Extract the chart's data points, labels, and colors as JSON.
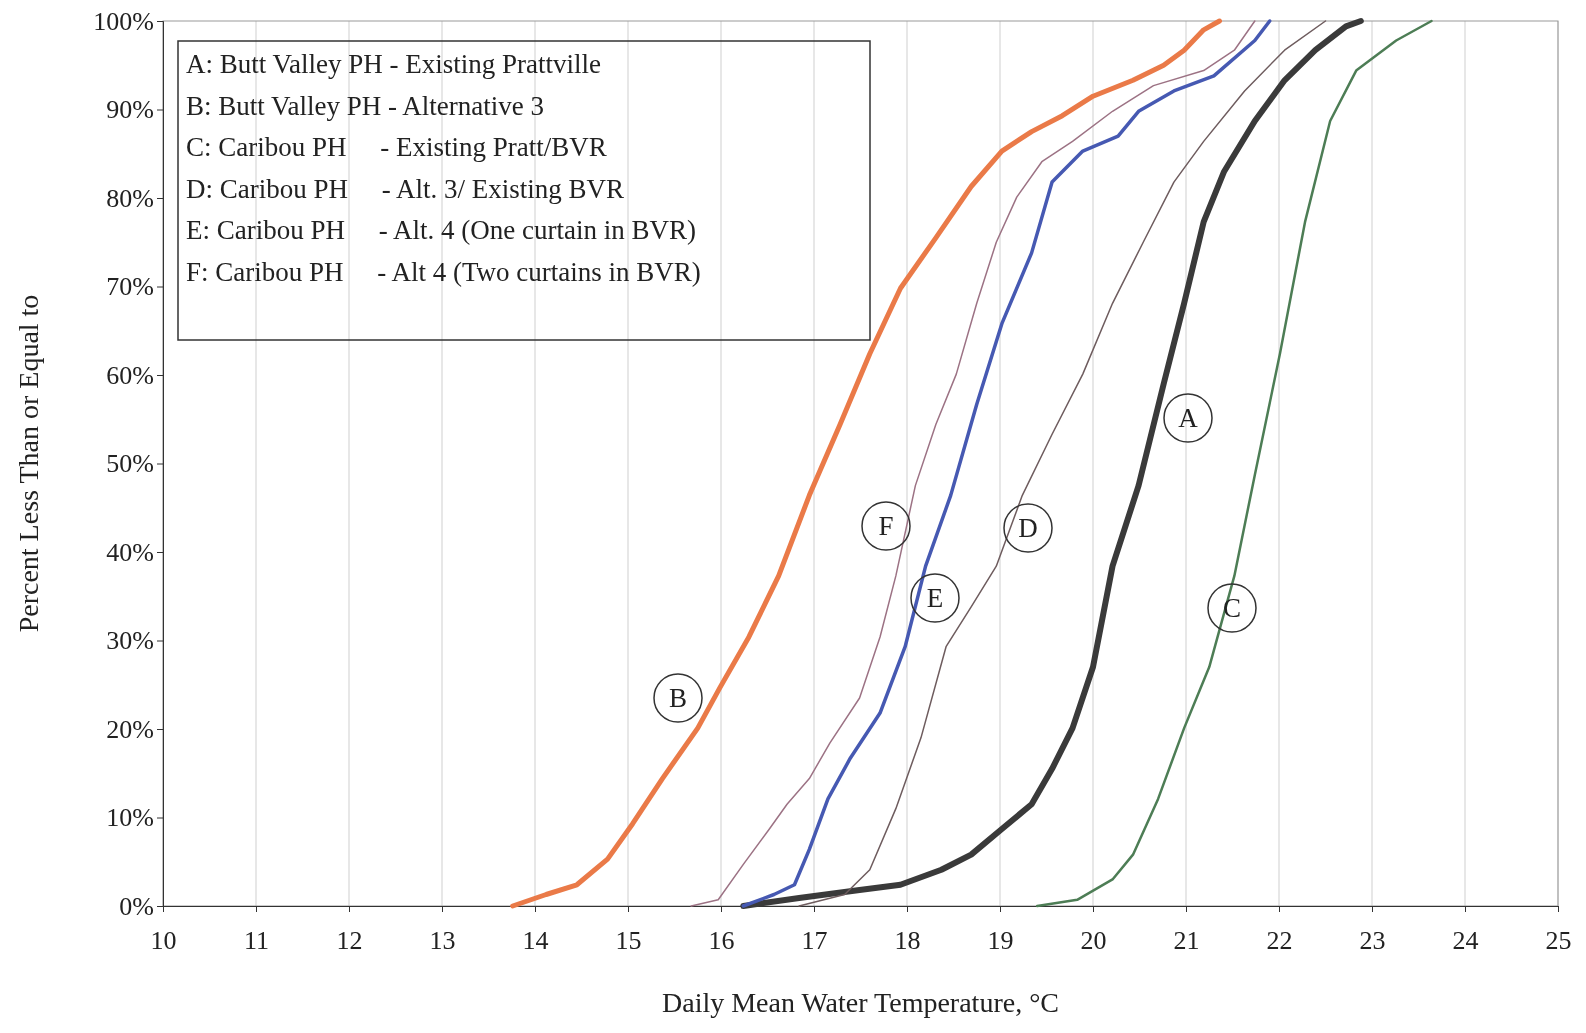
{
  "chart_data": {
    "type": "line",
    "xlabel": "Daily Mean Water Temperature, °C",
    "ylabel": "Percent Less Than or Equal to",
    "xlim": [
      10,
      25
    ],
    "xticks": [
      10,
      11,
      12,
      13,
      14,
      15,
      16,
      17,
      18,
      19,
      20,
      21,
      22,
      23,
      24,
      25
    ],
    "ylim": [
      0,
      100
    ],
    "yticks": [
      {
        "value": 0,
        "label": "0%"
      },
      {
        "value": 10,
        "label": "10%"
      },
      {
        "value": 20,
        "label": "20%"
      },
      {
        "value": 30,
        "label": "30%"
      },
      {
        "value": 40,
        "label": "40%"
      },
      {
        "value": 50,
        "label": "50%"
      },
      {
        "value": 60,
        "label": "60%"
      },
      {
        "value": 70,
        "label": "70%"
      },
      {
        "value": 80,
        "label": "80%"
      },
      {
        "value": 90,
        "label": "90%"
      },
      {
        "value": 100,
        "label": "100%"
      }
    ],
    "grid": "x",
    "marker": "none",
    "line_style": "solid",
    "series": [
      {
        "name": "A",
        "color": "#3a3a3a",
        "x": [
          16.24,
          16.84,
          17.49,
          17.93,
          18.37,
          18.69,
          19.02,
          19.34,
          19.56,
          19.78,
          20.0,
          20.21,
          20.49,
          20.76,
          20.98,
          21.19,
          21.41,
          21.74,
          22.06,
          22.39,
          22.72,
          22.88
        ],
        "values": [
          0,
          0.9,
          1.8,
          2.4,
          4.1,
          5.8,
          8.7,
          11.5,
          15.5,
          20.1,
          27,
          38.4,
          47.5,
          59,
          68.1,
          77.3,
          83,
          88.7,
          93.3,
          96.7,
          99.4,
          100
        ]
      },
      {
        "name": "B",
        "color": "#ea7a48",
        "x": [
          13.76,
          14.12,
          14.45,
          14.78,
          15.05,
          15.37,
          15.75,
          15.99,
          16.3,
          16.62,
          16.95,
          17.28,
          17.6,
          17.93,
          18.31,
          18.69,
          19.02,
          19.34,
          19.67,
          20.0,
          20.43,
          20.76,
          20.98,
          21.19,
          21.36
        ],
        "values": [
          0,
          1.3,
          2.4,
          5.3,
          9.3,
          14.4,
          20.1,
          24.7,
          30.4,
          37.3,
          46.4,
          54.4,
          62.4,
          69.8,
          75.5,
          81.3,
          85.3,
          87.5,
          89.3,
          91.5,
          93.3,
          95,
          96.7,
          99,
          100
        ]
      },
      {
        "name": "C",
        "color": "#4d7d55",
        "x": [
          19.4,
          19.83,
          20.21,
          20.43,
          20.7,
          20.98,
          21.25,
          21.52,
          21.74,
          22.01,
          22.28,
          22.55,
          22.83,
          23.26,
          23.64
        ],
        "values": [
          0,
          0.7,
          3,
          5.8,
          12.1,
          20.1,
          27,
          37.3,
          48.7,
          62.4,
          77.3,
          88.7,
          94.4,
          97.8,
          100
        ]
      },
      {
        "name": "D",
        "color": "#6e5c5e",
        "x": [
          16.84,
          17.33,
          17.6,
          17.88,
          18.15,
          18.42,
          18.69,
          18.96,
          19.24,
          19.56,
          19.89,
          20.21,
          20.54,
          20.87,
          21.19,
          21.63,
          22.06,
          22.5
        ],
        "values": [
          0,
          1.3,
          4.1,
          11,
          19,
          29.3,
          33.8,
          38.4,
          46.4,
          53.3,
          60.1,
          68.1,
          75,
          81.8,
          86.4,
          92.1,
          96.7,
          100
        ]
      },
      {
        "name": "E",
        "color": "#4659b2",
        "x": [
          16.24,
          16.57,
          16.79,
          16.95,
          17.15,
          17.39,
          17.71,
          17.98,
          18.2,
          18.47,
          18.75,
          19.02,
          19.34,
          19.56,
          19.89,
          20.27,
          20.49,
          20.87,
          21.3,
          21.74,
          21.9
        ],
        "values": [
          0,
          1.3,
          2.4,
          6.4,
          12.1,
          16.7,
          21.8,
          29.3,
          38.4,
          46.4,
          56.7,
          65.8,
          73.8,
          81.8,
          85.3,
          87,
          89.8,
          92.1,
          93.8,
          97.8,
          100
        ]
      },
      {
        "name": "F",
        "color": "#9c7284",
        "x": [
          15.68,
          15.97,
          16.24,
          16.52,
          16.71,
          16.95,
          17.17,
          17.49,
          17.71,
          17.88,
          18.09,
          18.31,
          18.53,
          18.75,
          18.96,
          19.18,
          19.45,
          19.78,
          20.21,
          20.65,
          21.19,
          21.52,
          21.74
        ],
        "values": [
          0,
          0.7,
          4.7,
          8.7,
          11.5,
          14.4,
          18.4,
          23.5,
          30.4,
          37.3,
          47.5,
          54.4,
          60.1,
          68.1,
          75,
          80.1,
          84.1,
          86.4,
          89.8,
          92.7,
          94.4,
          96.7,
          100
        ]
      }
    ],
    "annotations": [
      "A: Butt Valley PH - Existing Prattville",
      "B: Butt Valley PH - Alternative 3",
      "C: Caribou PH     - Existing Pratt/BVR",
      "D: Caribou PH     - Alt. 3/ Existing BVR",
      "E: Caribou PH     - Alt. 4 (One curtain in BVR)",
      "F: Caribou PH     - Alt 4 (Two curtains in BVR)"
    ]
  }
}
